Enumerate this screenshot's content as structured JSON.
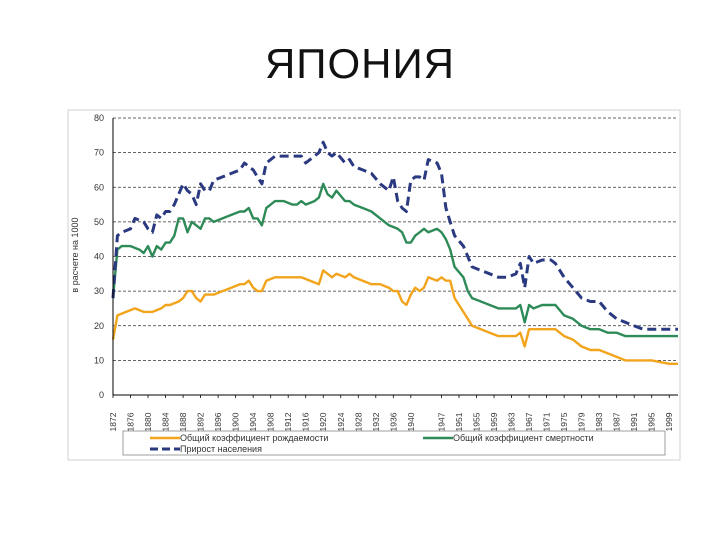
{
  "slide": {
    "title": "ЯПОНИЯ"
  },
  "chart_data": {
    "type": "line",
    "ylabel": "в расчете на 1000",
    "ylim": [
      0,
      80
    ],
    "yticks": [
      "0",
      "10",
      "20",
      "30",
      "40",
      "50",
      "60",
      "70",
      "80"
    ],
    "xlim": [
      1872,
      2001
    ],
    "xticks": [
      "1872",
      "1876",
      "1880",
      "1884",
      "1888",
      "1892",
      "1896",
      "1900",
      "1904",
      "1908",
      "1912",
      "1916",
      "1920",
      "1924",
      "1928",
      "1932",
      "1936",
      "1940",
      "1947",
      "1951",
      "1955",
      "1959",
      "1963",
      "1967",
      "1971",
      "1975",
      "1979",
      "1983",
      "1987",
      "1991",
      "1995",
      "1999"
    ],
    "grid": "horizontal dashed",
    "legend_position": "bottom",
    "series": [
      {
        "name": "Общий коэффициент рождаемости",
        "color": "#f2a41c",
        "style": "solid",
        "points": [
          [
            1872,
            16
          ],
          [
            1873,
            23
          ],
          [
            1875,
            24
          ],
          [
            1877,
            25
          ],
          [
            1879,
            24
          ],
          [
            1881,
            24
          ],
          [
            1883,
            25
          ],
          [
            1884,
            26
          ],
          [
            1885,
            26
          ],
          [
            1887,
            27
          ],
          [
            1888,
            28
          ],
          [
            1889,
            30
          ],
          [
            1890,
            30
          ],
          [
            1891,
            28
          ],
          [
            1892,
            27
          ],
          [
            1893,
            29
          ],
          [
            1895,
            29
          ],
          [
            1897,
            30
          ],
          [
            1899,
            31
          ],
          [
            1901,
            32
          ],
          [
            1902,
            32
          ],
          [
            1903,
            33
          ],
          [
            1904,
            31
          ],
          [
            1905,
            30
          ],
          [
            1906,
            30
          ],
          [
            1907,
            33
          ],
          [
            1909,
            34
          ],
          [
            1911,
            34
          ],
          [
            1913,
            34
          ],
          [
            1915,
            34
          ],
          [
            1917,
            33
          ],
          [
            1919,
            32
          ],
          [
            1920,
            36
          ],
          [
            1921,
            35
          ],
          [
            1922,
            34
          ],
          [
            1923,
            35
          ],
          [
            1925,
            34
          ],
          [
            1926,
            35
          ],
          [
            1927,
            34
          ],
          [
            1929,
            33
          ],
          [
            1931,
            32
          ],
          [
            1933,
            32
          ],
          [
            1935,
            31
          ],
          [
            1936,
            30
          ],
          [
            1937,
            30
          ],
          [
            1938,
            27
          ],
          [
            1939,
            26
          ],
          [
            1940,
            29
          ],
          [
            1941,
            31
          ],
          [
            1942,
            30
          ],
          [
            1943,
            31
          ],
          [
            1944,
            34
          ],
          [
            1946,
            33
          ],
          [
            1947,
            34
          ],
          [
            1948,
            33
          ],
          [
            1949,
            33
          ],
          [
            1950,
            28
          ],
          [
            1951,
            26
          ],
          [
            1952,
            24
          ],
          [
            1953,
            22
          ],
          [
            1954,
            20
          ],
          [
            1956,
            19
          ],
          [
            1958,
            18
          ],
          [
            1960,
            17
          ],
          [
            1962,
            17
          ],
          [
            1964,
            17
          ],
          [
            1965,
            18
          ],
          [
            1966,
            14
          ],
          [
            1967,
            19
          ],
          [
            1968,
            19
          ],
          [
            1970,
            19
          ],
          [
            1972,
            19
          ],
          [
            1973,
            19
          ],
          [
            1975,
            17
          ],
          [
            1977,
            16
          ],
          [
            1979,
            14
          ],
          [
            1981,
            13
          ],
          [
            1983,
            13
          ],
          [
            1985,
            12
          ],
          [
            1987,
            11
          ],
          [
            1989,
            10
          ],
          [
            1991,
            10
          ],
          [
            1995,
            10
          ],
          [
            1999,
            9
          ],
          [
            2001,
            9
          ]
        ]
      },
      {
        "name": "Общий коэффициент смертности",
        "color": "#2e8b57",
        "style": "solid",
        "points": [
          [
            1872,
            28
          ],
          [
            1873,
            42
          ],
          [
            1874,
            43
          ],
          [
            1876,
            43
          ],
          [
            1878,
            42
          ],
          [
            1879,
            41
          ],
          [
            1880,
            43
          ],
          [
            1881,
            40
          ],
          [
            1882,
            43
          ],
          [
            1883,
            42
          ],
          [
            1884,
            44
          ],
          [
            1885,
            44
          ],
          [
            1886,
            46
          ],
          [
            1887,
            51
          ],
          [
            1888,
            51
          ],
          [
            1889,
            47
          ],
          [
            1890,
            50
          ],
          [
            1891,
            49
          ],
          [
            1892,
            48
          ],
          [
            1893,
            51
          ],
          [
            1894,
            51
          ],
          [
            1895,
            50
          ],
          [
            1897,
            51
          ],
          [
            1899,
            52
          ],
          [
            1901,
            53
          ],
          [
            1902,
            53
          ],
          [
            1903,
            54
          ],
          [
            1904,
            51
          ],
          [
            1905,
            51
          ],
          [
            1906,
            49
          ],
          [
            1907,
            54
          ],
          [
            1909,
            56
          ],
          [
            1911,
            56
          ],
          [
            1913,
            55
          ],
          [
            1914,
            55
          ],
          [
            1915,
            56
          ],
          [
            1916,
            55
          ],
          [
            1918,
            56
          ],
          [
            1919,
            57
          ],
          [
            1920,
            61
          ],
          [
            1921,
            58
          ],
          [
            1922,
            57
          ],
          [
            1923,
            59
          ],
          [
            1925,
            56
          ],
          [
            1926,
            56
          ],
          [
            1927,
            55
          ],
          [
            1929,
            54
          ],
          [
            1931,
            53
          ],
          [
            1933,
            51
          ],
          [
            1935,
            49
          ],
          [
            1937,
            48
          ],
          [
            1938,
            47
          ],
          [
            1939,
            44
          ],
          [
            1940,
            44
          ],
          [
            1941,
            46
          ],
          [
            1942,
            47
          ],
          [
            1943,
            48
          ],
          [
            1944,
            47
          ],
          [
            1946,
            48
          ],
          [
            1947,
            47
          ],
          [
            1948,
            45
          ],
          [
            1949,
            42
          ],
          [
            1950,
            37
          ],
          [
            1952,
            34
          ],
          [
            1953,
            30
          ],
          [
            1954,
            28
          ],
          [
            1956,
            27
          ],
          [
            1958,
            26
          ],
          [
            1960,
            25
          ],
          [
            1962,
            25
          ],
          [
            1964,
            25
          ],
          [
            1965,
            26
          ],
          [
            1966,
            21
          ],
          [
            1967,
            26
          ],
          [
            1968,
            25
          ],
          [
            1970,
            26
          ],
          [
            1972,
            26
          ],
          [
            1973,
            26
          ],
          [
            1975,
            23
          ],
          [
            1977,
            22
          ],
          [
            1979,
            20
          ],
          [
            1981,
            19
          ],
          [
            1983,
            19
          ],
          [
            1985,
            18
          ],
          [
            1987,
            18
          ],
          [
            1989,
            17
          ],
          [
            1991,
            17
          ],
          [
            1993,
            17
          ],
          [
            1995,
            17
          ],
          [
            1997,
            17
          ],
          [
            1999,
            17
          ],
          [
            2001,
            17
          ]
        ]
      },
      {
        "name": "Прирост населения",
        "color": "#2b3a80",
        "style": "dashed",
        "points": [
          [
            1872,
            28
          ],
          [
            1873,
            46
          ],
          [
            1874,
            47
          ],
          [
            1876,
            48
          ],
          [
            1877,
            51
          ],
          [
            1879,
            50
          ],
          [
            1880,
            48
          ],
          [
            1881,
            47
          ],
          [
            1882,
            52
          ],
          [
            1883,
            51
          ],
          [
            1884,
            53
          ],
          [
            1885,
            53
          ],
          [
            1886,
            55
          ],
          [
            1887,
            58
          ],
          [
            1888,
            61
          ],
          [
            1889,
            59
          ],
          [
            1890,
            58
          ],
          [
            1891,
            55
          ],
          [
            1892,
            61
          ],
          [
            1893,
            59
          ],
          [
            1894,
            59
          ],
          [
            1895,
            62
          ],
          [
            1897,
            63
          ],
          [
            1899,
            64
          ],
          [
            1901,
            65
          ],
          [
            1902,
            67
          ],
          [
            1903,
            66
          ],
          [
            1904,
            65
          ],
          [
            1905,
            63
          ],
          [
            1906,
            61
          ],
          [
            1907,
            67
          ],
          [
            1909,
            69
          ],
          [
            1911,
            69
          ],
          [
            1913,
            69
          ],
          [
            1914,
            69
          ],
          [
            1915,
            69
          ],
          [
            1916,
            67
          ],
          [
            1918,
            69
          ],
          [
            1919,
            70
          ],
          [
            1920,
            73
          ],
          [
            1921,
            70
          ],
          [
            1922,
            69
          ],
          [
            1923,
            70
          ],
          [
            1925,
            67
          ],
          [
            1926,
            68
          ],
          [
            1927,
            66
          ],
          [
            1929,
            65
          ],
          [
            1931,
            64
          ],
          [
            1933,
            61
          ],
          [
            1935,
            59
          ],
          [
            1936,
            63
          ],
          [
            1937,
            56
          ],
          [
            1938,
            54
          ],
          [
            1939,
            53
          ],
          [
            1940,
            62
          ],
          [
            1941,
            63
          ],
          [
            1942,
            63
          ],
          [
            1943,
            62
          ],
          [
            1944,
            68
          ],
          [
            1946,
            67
          ],
          [
            1947,
            64
          ],
          [
            1948,
            54
          ],
          [
            1949,
            50
          ],
          [
            1950,
            46
          ],
          [
            1952,
            43
          ],
          [
            1953,
            40
          ],
          [
            1954,
            37
          ],
          [
            1956,
            36
          ],
          [
            1958,
            35
          ],
          [
            1960,
            34
          ],
          [
            1962,
            34
          ],
          [
            1964,
            35
          ],
          [
            1965,
            38
          ],
          [
            1966,
            31
          ],
          [
            1967,
            40
          ],
          [
            1968,
            38
          ],
          [
            1970,
            39
          ],
          [
            1972,
            39
          ],
          [
            1973,
            38
          ],
          [
            1975,
            34
          ],
          [
            1977,
            31
          ],
          [
            1979,
            28
          ],
          [
            1981,
            27
          ],
          [
            1983,
            27
          ],
          [
            1985,
            24
          ],
          [
            1987,
            22
          ],
          [
            1989,
            21
          ],
          [
            1991,
            20
          ],
          [
            1993,
            19
          ],
          [
            1995,
            19
          ],
          [
            1997,
            19
          ],
          [
            1999,
            19
          ],
          [
            2001,
            19
          ]
        ]
      }
    ]
  }
}
